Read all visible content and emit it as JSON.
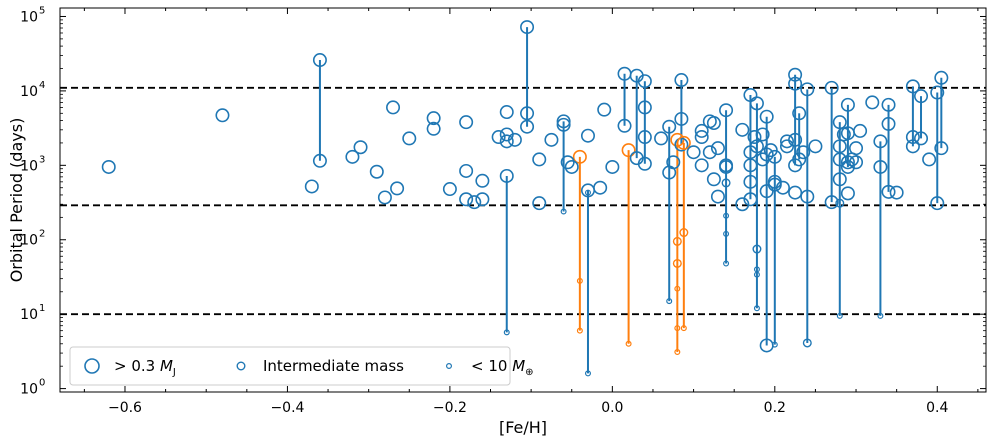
{
  "chart_data": {
    "type": "scatter",
    "title": "",
    "xlabel": "[Fe/H]",
    "ylabel": "Orbital Period (days)",
    "xlim": [
      -0.68,
      0.46
    ],
    "ylim": [
      0.9,
      130000
    ],
    "yscale": "log",
    "grid": false,
    "legend_position": "lower-left",
    "colors": {
      "primary": "#1f77b4",
      "secondary": "#ff7f0e",
      "reference_line": "#000000"
    },
    "x_ticks": [
      {
        "value": -0.6,
        "label": "−0.6"
      },
      {
        "value": -0.4,
        "label": "−0.4"
      },
      {
        "value": -0.2,
        "label": "−0.2"
      },
      {
        "value": 0.0,
        "label": "0.0"
      },
      {
        "value": 0.2,
        "label": "0.2"
      },
      {
        "value": 0.4,
        "label": "0.4"
      }
    ],
    "y_ticks": [
      {
        "value": 1,
        "label": "10^0",
        "base": "10",
        "exp": "0"
      },
      {
        "value": 10,
        "label": "10^1",
        "base": "10",
        "exp": "1"
      },
      {
        "value": 100,
        "label": "10^2",
        "base": "10",
        "exp": "2"
      },
      {
        "value": 1000,
        "label": "10^3",
        "base": "10",
        "exp": "3"
      },
      {
        "value": 10000,
        "label": "10^4",
        "base": "10",
        "exp": "4"
      },
      {
        "value": 100000,
        "label": "10^5",
        "base": "10",
        "exp": "5"
      }
    ],
    "reference_lines": [
      10,
      290,
      11000
    ],
    "legend": [
      {
        "label": "> 0.3 M_J",
        "text": "> 0.3 ",
        "sym": "M",
        "sub": "J",
        "size": "large"
      },
      {
        "label": "Intermediate mass",
        "text": "Intermediate mass",
        "size": "medium"
      },
      {
        "label": "< 10 M_⊕",
        "text": "< 10 ",
        "sym": "M",
        "sub": "⊕",
        "size": "small"
      }
    ],
    "systems": [
      {
        "feh": -0.36,
        "color": "blue",
        "planets": [
          [
            26000,
            "L"
          ],
          [
            1150,
            "L"
          ]
        ]
      },
      {
        "feh": -0.13,
        "color": "blue",
        "planets": [
          [
            720,
            "L"
          ],
          [
            5.7,
            "S"
          ]
        ]
      },
      {
        "feh": -0.105,
        "color": "blue",
        "planets": [
          [
            72000,
            "L"
          ],
          [
            5000,
            "L"
          ],
          [
            3300,
            "L"
          ]
        ]
      },
      {
        "feh": -0.06,
        "color": "blue",
        "planets": [
          [
            3900,
            "L"
          ],
          [
            3500,
            "L"
          ],
          [
            240,
            "S"
          ]
        ]
      },
      {
        "feh": -0.04,
        "color": "orange",
        "planets": [
          [
            1300,
            "L"
          ],
          [
            28,
            "S"
          ],
          [
            6.0,
            "S"
          ]
        ]
      },
      {
        "feh": -0.03,
        "color": "blue",
        "planets": [
          [
            460,
            "L"
          ],
          [
            430,
            "S"
          ],
          [
            1.6,
            "S"
          ]
        ]
      },
      {
        "feh": 0.015,
        "color": "blue",
        "planets": [
          [
            17000,
            "L"
          ],
          [
            3400,
            "L"
          ]
        ]
      },
      {
        "feh": 0.02,
        "color": "orange",
        "planets": [
          [
            1600,
            "L"
          ],
          [
            4.0,
            "S"
          ]
        ]
      },
      {
        "feh": 0.03,
        "color": "blue",
        "planets": [
          [
            16000,
            "L"
          ],
          [
            1250,
            "L"
          ]
        ]
      },
      {
        "feh": 0.04,
        "color": "blue",
        "planets": [
          [
            13500,
            "L"
          ],
          [
            6000,
            "L"
          ],
          [
            2400,
            "L"
          ],
          [
            1050,
            "L"
          ]
        ]
      },
      {
        "feh": 0.07,
        "color": "blue",
        "planets": [
          [
            3300,
            "L"
          ],
          [
            800,
            "L"
          ],
          [
            15,
            "S"
          ]
        ]
      },
      {
        "feh": 0.08,
        "color": "orange",
        "planets": [
          [
            2200,
            "L"
          ],
          [
            95,
            "M"
          ],
          [
            48,
            "M"
          ],
          [
            22,
            "S"
          ],
          [
            6.5,
            "S"
          ],
          [
            3.1,
            "S"
          ]
        ]
      },
      {
        "feh": 0.085,
        "color": "blue",
        "planets": [
          [
            14000,
            "L"
          ],
          [
            4200,
            "L"
          ],
          [
            1900,
            "L"
          ]
        ]
      },
      {
        "feh": 0.088,
        "color": "orange",
        "planets": [
          [
            2000,
            "L"
          ],
          [
            125,
            "M"
          ],
          [
            6.5,
            "S"
          ]
        ]
      },
      {
        "feh": 0.14,
        "color": "blue",
        "planets": [
          [
            5500,
            "L"
          ],
          [
            1000,
            "L"
          ],
          [
            580,
            "M"
          ],
          [
            210,
            "S"
          ],
          [
            120,
            "S"
          ],
          [
            48,
            "S"
          ]
        ]
      },
      {
        "feh": 0.17,
        "color": "blue",
        "planets": [
          [
            8800,
            "L"
          ],
          [
            1500,
            "L"
          ],
          [
            600,
            "L"
          ],
          [
            350,
            "L"
          ]
        ]
      },
      {
        "feh": 0.178,
        "color": "blue",
        "planets": [
          [
            6800,
            "L"
          ],
          [
            1800,
            "L"
          ],
          [
            75,
            "M"
          ],
          [
            40,
            "S"
          ],
          [
            34,
            "S"
          ],
          [
            12,
            "S"
          ]
        ]
      },
      {
        "feh": 0.19,
        "color": "blue",
        "planets": [
          [
            4500,
            "L"
          ],
          [
            1400,
            "L"
          ],
          [
            3.8,
            "L"
          ]
        ]
      },
      {
        "feh": 0.2,
        "color": "blue",
        "planets": [
          [
            1300,
            "L"
          ],
          [
            600,
            "L"
          ],
          [
            3.9,
            "S"
          ]
        ]
      },
      {
        "feh": 0.225,
        "color": "blue",
        "planets": [
          [
            16500,
            "L"
          ],
          [
            12500,
            "L"
          ],
          [
            2200,
            "L"
          ],
          [
            1000,
            "L"
          ]
        ]
      },
      {
        "feh": 0.23,
        "color": "blue",
        "planets": [
          [
            5000,
            "L"
          ],
          [
            1200,
            "L"
          ]
        ]
      },
      {
        "feh": 0.24,
        "color": "blue",
        "planets": [
          [
            10500,
            "L"
          ],
          [
            380,
            "L"
          ],
          [
            4.1,
            "M"
          ]
        ]
      },
      {
        "feh": 0.27,
        "color": "blue",
        "planets": [
          [
            11000,
            "L"
          ],
          [
            320,
            "L"
          ]
        ]
      },
      {
        "feh": 0.28,
        "color": "blue",
        "planets": [
          [
            3800,
            "L"
          ],
          [
            1200,
            "L"
          ],
          [
            650,
            "L"
          ],
          [
            310,
            "M"
          ],
          [
            9.5,
            "S"
          ]
        ]
      },
      {
        "feh": 0.29,
        "color": "blue",
        "planets": [
          [
            6500,
            "L"
          ],
          [
            2700,
            "L"
          ],
          [
            1100,
            "L"
          ],
          [
            950,
            "L"
          ]
        ]
      },
      {
        "feh": 0.33,
        "color": "blue",
        "planets": [
          [
            2100,
            "L"
          ],
          [
            950,
            "L"
          ],
          [
            9.5,
            "S"
          ]
        ]
      },
      {
        "feh": 0.34,
        "color": "blue",
        "planets": [
          [
            6500,
            "L"
          ],
          [
            3600,
            "L"
          ],
          [
            440,
            "L"
          ]
        ]
      },
      {
        "feh": 0.37,
        "color": "blue",
        "planets": [
          [
            11500,
            "L"
          ],
          [
            2400,
            "L"
          ],
          [
            1800,
            "L"
          ]
        ]
      },
      {
        "feh": 0.38,
        "color": "blue",
        "planets": [
          [
            8500,
            "L"
          ],
          [
            2300,
            "L"
          ]
        ]
      },
      {
        "feh": 0.4,
        "color": "blue",
        "planets": [
          [
            9500,
            "L"
          ],
          [
            310,
            "L"
          ]
        ]
      },
      {
        "feh": 0.405,
        "color": "blue",
        "planets": [
          [
            15000,
            "L"
          ],
          [
            1700,
            "L"
          ]
        ]
      }
    ],
    "singles": [
      [
        -0.62,
        950
      ],
      [
        -0.48,
        4700
      ],
      [
        -0.37,
        520
      ],
      [
        -0.32,
        1300
      ],
      [
        -0.31,
        1750
      ],
      [
        -0.29,
        820
      ],
      [
        -0.28,
        370
      ],
      [
        -0.27,
        6000
      ],
      [
        -0.265,
        490
      ],
      [
        -0.25,
        2300
      ],
      [
        -0.22,
        4300
      ],
      [
        -0.22,
        3100
      ],
      [
        -0.2,
        480
      ],
      [
        -0.18,
        3800
      ],
      [
        -0.18,
        840
      ],
      [
        -0.18,
        350
      ],
      [
        -0.17,
        320
      ],
      [
        -0.16,
        620
      ],
      [
        -0.16,
        350
      ],
      [
        -0.14,
        2400
      ],
      [
        -0.13,
        5200
      ],
      [
        -0.13,
        2600
      ],
      [
        -0.13,
        2100
      ],
      [
        -0.12,
        2200
      ],
      [
        -0.09,
        310
      ],
      [
        -0.09,
        1200
      ],
      [
        -0.075,
        2200
      ],
      [
        -0.055,
        1100
      ],
      [
        -0.05,
        950
      ],
      [
        -0.03,
        2500
      ],
      [
        -0.015,
        500
      ],
      [
        -0.01,
        5600
      ],
      [
        0.0,
        950
      ],
      [
        0.06,
        2300
      ],
      [
        0.075,
        1100
      ],
      [
        0.1,
        1500
      ],
      [
        0.11,
        2900
      ],
      [
        0.11,
        2400
      ],
      [
        0.11,
        1000
      ],
      [
        0.12,
        3900
      ],
      [
        0.12,
        1500
      ],
      [
        0.125,
        3700
      ],
      [
        0.125,
        650
      ],
      [
        0.13,
        1700
      ],
      [
        0.13,
        380
      ],
      [
        0.14,
        950
      ],
      [
        0.16,
        300
      ],
      [
        0.16,
        3000
      ],
      [
        0.17,
        1000
      ],
      [
        0.175,
        2400
      ],
      [
        0.185,
        2600
      ],
      [
        0.185,
        1200
      ],
      [
        0.19,
        450
      ],
      [
        0.195,
        1600
      ],
      [
        0.2,
        550
      ],
      [
        0.21,
        500
      ],
      [
        0.215,
        2100
      ],
      [
        0.215,
        1800
      ],
      [
        0.225,
        430
      ],
      [
        0.235,
        1500
      ],
      [
        0.25,
        1800
      ],
      [
        0.28,
        1800
      ],
      [
        0.285,
        2600
      ],
      [
        0.29,
        420
      ],
      [
        0.295,
        1200
      ],
      [
        0.3,
        1700
      ],
      [
        0.3,
        1100
      ],
      [
        0.305,
        2900
      ],
      [
        0.32,
        7000
      ],
      [
        0.35,
        430
      ],
      [
        0.39,
        1200
      ]
    ]
  }
}
